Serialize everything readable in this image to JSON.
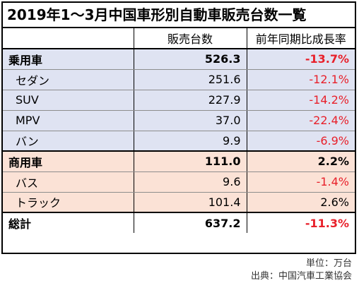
{
  "title": "2019年1～3月中国車形別自動車販売台数一覧",
  "columns": [
    "",
    "販売台数",
    "前年同期比成長率"
  ],
  "rows": [
    {
      "label": "乗用車",
      "value": "526.3",
      "growth": "-13.7%",
      "bold": true,
      "group": "blue"
    },
    {
      "label": "セダン",
      "value": "251.6",
      "growth": "-12.1%",
      "bold": false,
      "group": "blue"
    },
    {
      "label": "SUV",
      "value": "227.9",
      "growth": "-14.2%",
      "bold": false,
      "group": "blue"
    },
    {
      "label": "MPV",
      "value": "37.0",
      "growth": "-22.4%",
      "bold": false,
      "group": "blue"
    },
    {
      "label": "バン",
      "value": "9.9",
      "growth": "-6.9%",
      "bold": false,
      "group": "blue"
    },
    {
      "label": "商用車",
      "value": "111.0",
      "growth": "2.2%",
      "bold": true,
      "group": "pink"
    },
    {
      "label": "バス",
      "value": "9.6",
      "growth": "-1.4%",
      "bold": false,
      "group": "pink"
    },
    {
      "label": "トラック",
      "value": "101.4",
      "growth": "2.6%",
      "bold": false,
      "group": "pink"
    },
    {
      "label": "総計",
      "value": "637.2",
      "growth": "-11.3%",
      "bold": true,
      "group": "total"
    }
  ],
  "notes": {
    "unit": "単位：万台",
    "source": "出典：中国汽車工業協会"
  },
  "colors": {
    "negative": "#e8202a",
    "passenger_bg": "#dfe3f2",
    "commercial_bg": "#fbe2d6"
  }
}
